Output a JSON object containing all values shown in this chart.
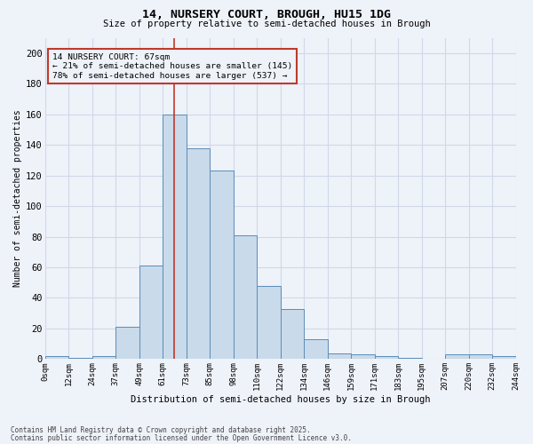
{
  "title1": "14, NURSERY COURT, BROUGH, HU15 1DG",
  "title2": "Size of property relative to semi-detached houses in Brough",
  "xlabel": "Distribution of semi-detached houses by size in Brough",
  "ylabel": "Number of semi-detached properties",
  "annotation_line1": "14 NURSERY COURT: 67sqm",
  "annotation_line2": "← 21% of semi-detached houses are smaller (145)",
  "annotation_line3": "78% of semi-detached houses are larger (537) →",
  "bin_labels": [
    "0sqm",
    "12sqm",
    "24sqm",
    "37sqm",
    "49sqm",
    "61sqm",
    "73sqm",
    "85sqm",
    "98sqm",
    "110sqm",
    "122sqm",
    "134sqm",
    "146sqm",
    "159sqm",
    "171sqm",
    "183sqm",
    "195sqm",
    "207sqm",
    "220sqm",
    "232sqm",
    "244sqm"
  ],
  "bar_values": [
    2,
    1,
    2,
    21,
    61,
    160,
    138,
    123,
    81,
    48,
    33,
    13,
    4,
    3,
    2,
    1,
    0,
    3,
    3,
    2
  ],
  "bar_color": "#c9daea",
  "bar_edge_color": "#5b8db8",
  "grid_color": "#d0d8e8",
  "background_color": "#eef2f9",
  "vline_color": "#c0392b",
  "vline_x": 5.5,
  "annotation_box_color": "#c0392b",
  "footer1": "Contains HM Land Registry data © Crown copyright and database right 2025.",
  "footer2": "Contains public sector information licensed under the Open Government Licence v3.0.",
  "ylim": [
    0,
    210
  ],
  "yticks": [
    0,
    20,
    40,
    60,
    80,
    100,
    120,
    140,
    160,
    180,
    200
  ]
}
